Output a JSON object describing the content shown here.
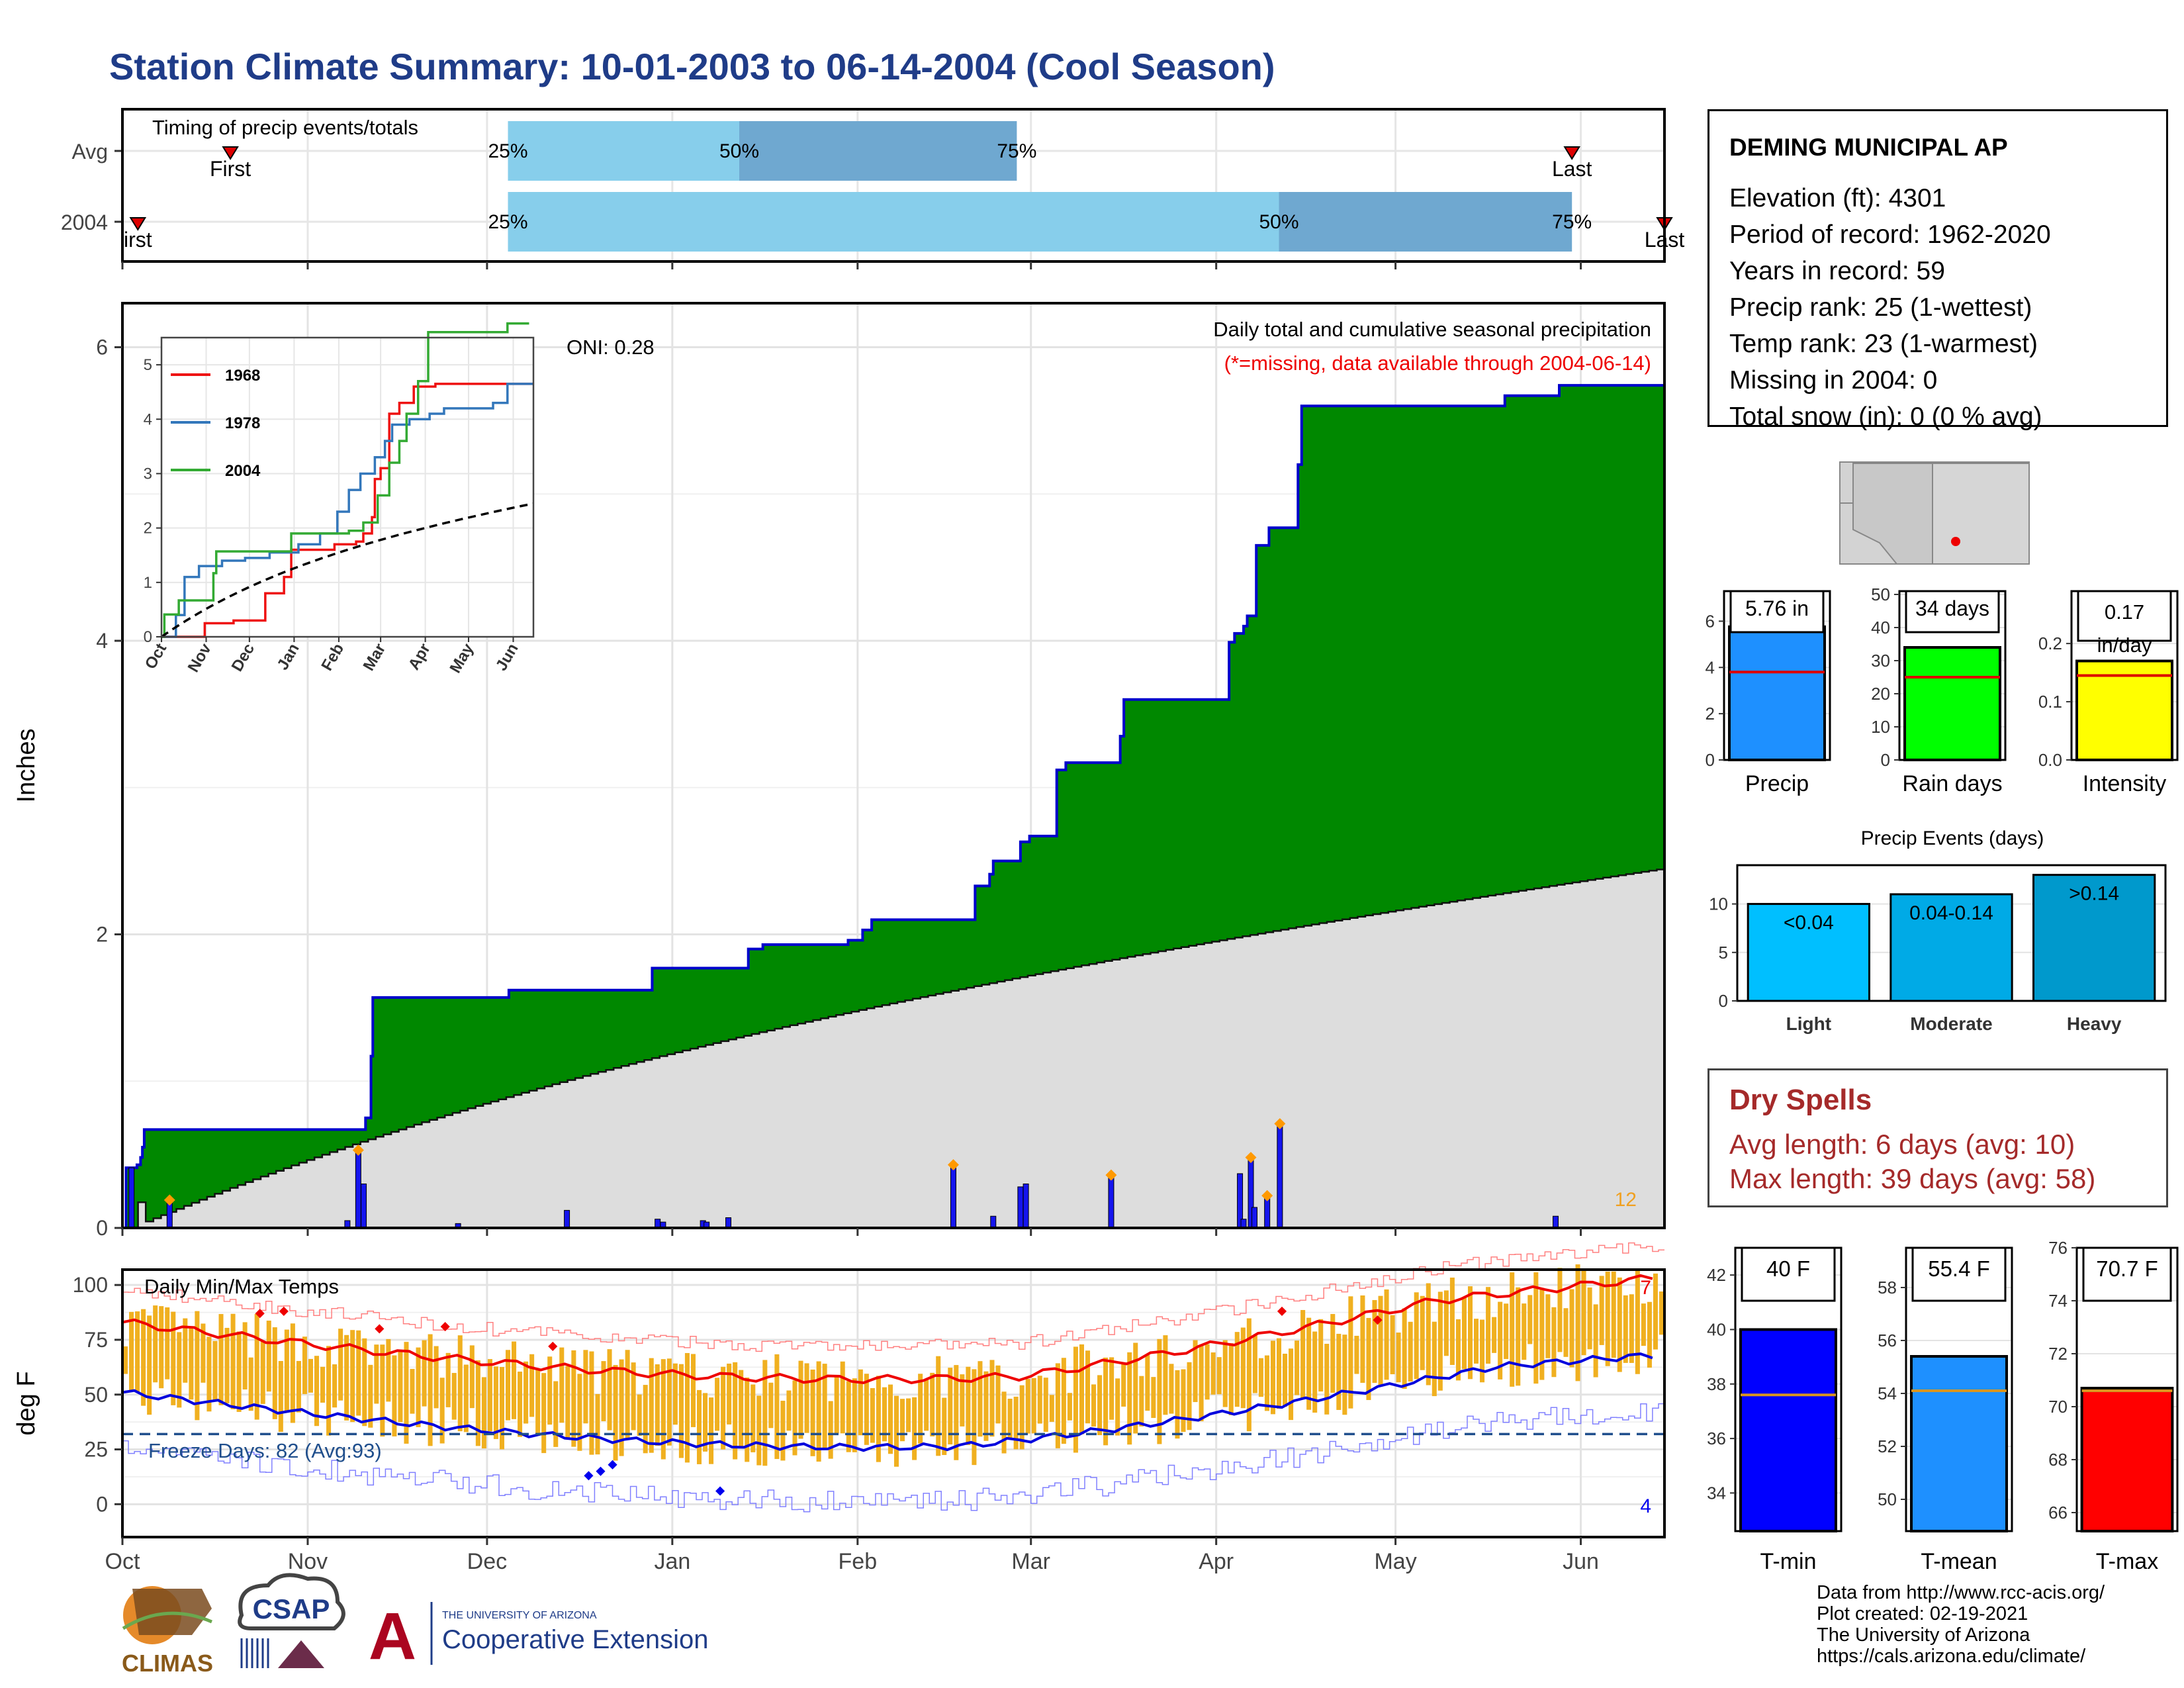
{
  "title": "Station Climate Summary: 10-01-2003 to 06-14-2004 (Cool Season)",
  "station": {
    "name": "DEMING MUNICIPAL AP",
    "lines": [
      "Elevation (ft): 4301",
      "Period of record: 1962-2020",
      "Years in record: 59",
      "Precip rank: 25 (1-wettest)",
      "Temp rank: 23 (1-warmest)",
      "Missing in 2004: 0",
      "Total snow (in): 0 (0 % avg)"
    ]
  },
  "dry_spells": {
    "title": "Dry Spells",
    "avg": "Avg length: 6 days (avg: 10)",
    "max": "Max length: 39 days (avg: 58)"
  },
  "credits": [
    "Data from http://www.rcc-acis.org/",
    "Plot created: 02-19-2021",
    "The University of Arizona",
    "https://cals.arizona.edu/climate/"
  ],
  "logos": {
    "climas": "CLIMAS",
    "csap": "CSAP",
    "ua_small": "THE UNIVERSITY OF ARIZONA",
    "ua_ext": "Cooperative Extension",
    "ua_letter": "A"
  },
  "colors": {
    "navy_title": "#1f3c88",
    "cum_fill": "#008800",
    "cum_line": "#0000cc",
    "avg_fill": "#dddddd",
    "bar_blue": "#1515ee",
    "diamond": "#ff9900",
    "temp_bar": "#f0b020",
    "tmax_avg": "#ee0000",
    "tmin_avg": "#0000dd",
    "light_blue": "#87ceeb",
    "mid_blue": "#6fa8d0"
  },
  "chart_data": [
    {
      "id": "timing",
      "type": "bar",
      "label": "Timing of precip events/totals",
      "rows": [
        {
          "name": "Avg",
          "first": 7,
          "q25": 25,
          "q50": 40,
          "q75": 58,
          "last": 94,
          "first_label": "First",
          "last_label": "Last"
        },
        {
          "name": "2004",
          "first": 1,
          "q25": 25,
          "q50": 75,
          "q75": 94,
          "last": 100,
          "first_label": "irst",
          "last_label": "Last"
        }
      ],
      "pct_labels": [
        "25%",
        "50%",
        "75%"
      ]
    },
    {
      "id": "precip",
      "type": "area",
      "title": "Daily total and cumulative seasonal precipitation",
      "subtitle": "(*=missing, data available through 2004-06-14)",
      "oni": "ONI: 0.28",
      "ylabel": "Inches",
      "ylim": [
        0,
        6.3
      ],
      "yticks": [
        0,
        2,
        4,
        6
      ],
      "xticks": [
        "Oct",
        "Nov",
        "Dec",
        "Jan",
        "Feb",
        "Mar",
        "Apr",
        "May",
        "Jun"
      ],
      "count_label": "12",
      "cumulative_2004": [
        [
          0,
          0
        ],
        [
          2,
          0.41
        ],
        [
          8,
          0.43
        ],
        [
          10,
          0.48
        ],
        [
          11,
          0.55
        ],
        [
          12,
          0.67
        ],
        [
          132,
          0.67
        ],
        [
          134,
          0.75
        ],
        [
          137,
          1.17
        ],
        [
          138,
          1.57
        ],
        [
          210,
          1.57
        ],
        [
          213,
          1.62
        ],
        [
          290,
          1.62
        ],
        [
          292,
          1.77
        ],
        [
          338,
          1.77
        ],
        [
          345,
          1.9
        ],
        [
          353,
          1.93
        ],
        [
          395,
          1.93
        ],
        [
          400,
          1.96
        ],
        [
          408,
          2.03
        ],
        [
          413,
          2.1
        ],
        [
          468,
          2.1
        ],
        [
          470,
          2.33
        ],
        [
          478,
          2.41
        ],
        [
          480,
          2.5
        ],
        [
          495,
          2.63
        ],
        [
          500,
          2.67
        ],
        [
          512,
          2.67
        ],
        [
          515,
          3.12
        ],
        [
          520,
          3.17
        ],
        [
          545,
          3.17
        ],
        [
          550,
          3.35
        ],
        [
          552,
          3.6
        ],
        [
          605,
          3.6
        ],
        [
          610,
          3.99
        ],
        [
          613,
          4.05
        ],
        [
          618,
          4.1
        ],
        [
          620,
          4.17
        ],
        [
          625,
          4.65
        ],
        [
          632,
          4.77
        ],
        [
          645,
          4.77
        ],
        [
          648,
          5.2
        ],
        [
          650,
          5.6
        ],
        [
          730,
          5.6
        ],
        [
          760,
          5.6
        ],
        [
          762,
          5.67
        ],
        [
          790,
          5.67
        ],
        [
          792,
          5.74
        ],
        [
          850,
          5.76
        ]
      ],
      "cumulative_avg_end": 2.45,
      "daily_bars": [
        [
          5,
          0.41
        ],
        [
          26,
          0.19
        ],
        [
          124,
          0.05
        ],
        [
          130,
          0.53
        ],
        [
          133,
          0.3
        ],
        [
          185,
          0.03
        ],
        [
          245,
          0.12
        ],
        [
          295,
          0.06
        ],
        [
          298,
          0.04
        ],
        [
          320,
          0.05
        ],
        [
          322,
          0.04
        ],
        [
          334,
          0.07
        ],
        [
          458,
          0.43
        ],
        [
          480,
          0.08
        ],
        [
          495,
          0.28
        ],
        [
          498,
          0.3
        ],
        [
          545,
          0.36
        ],
        [
          616,
          0.37
        ],
        [
          618,
          0.06
        ],
        [
          622,
          0.48
        ],
        [
          624,
          0.14
        ],
        [
          631,
          0.22
        ],
        [
          638,
          0.71
        ],
        [
          790,
          0.08
        ]
      ]
    },
    {
      "id": "inset",
      "type": "line",
      "series": [
        {
          "name": "1968"
        },
        {
          "name": "1978"
        },
        {
          "name": "2004"
        }
      ],
      "series_colors": [
        "#ee1111",
        "#3377bb",
        "#33aa33"
      ],
      "yticks": [
        0,
        1,
        2,
        3,
        4,
        5
      ],
      "ylim": [
        0,
        5.5
      ],
      "xticks": [
        "Oct",
        "Nov",
        "Dec",
        "Jan",
        "Feb",
        "Mar",
        "Apr",
        "May",
        "Jun"
      ]
    },
    {
      "id": "temps",
      "type": "bar",
      "label": "Daily Min/Max Temps",
      "ylabel": "deg F",
      "ylim": [
        -15,
        107
      ],
      "yticks": [
        0,
        25,
        50,
        75,
        100
      ],
      "freeze_label": "Freeze Days: 82 (Avg:93)",
      "freeze_line": 32,
      "count_max": "7",
      "count_min": "4",
      "xticks": [
        "Oct",
        "Nov",
        "Dec",
        "Jan",
        "Feb",
        "Mar",
        "Apr",
        "May",
        "Jun"
      ]
    },
    {
      "id": "precip_small",
      "type": "bar",
      "panels": [
        {
          "label": "Precip",
          "value_text": "5.76 in",
          "value": 5.76,
          "avg": 3.8,
          "ylim": [
            0,
            7.3
          ],
          "yticks": [
            0,
            2,
            4,
            6
          ],
          "color": "#1e90ff"
        },
        {
          "label": "Rain days",
          "value_text": "34 days",
          "value": 34,
          "avg": 25,
          "ylim": [
            0,
            51
          ],
          "yticks": [
            0,
            10,
            20,
            30,
            40,
            50
          ],
          "color": "#00ff00"
        },
        {
          "label": "Intensity",
          "value_text": "0.17 in/day",
          "value": 0.17,
          "avg": 0.145,
          "ylim": [
            0,
            0.29
          ],
          "yticks": [
            "0.0",
            "0.1",
            "0.2"
          ],
          "color": "#ffff00"
        }
      ]
    },
    {
      "id": "events",
      "type": "bar",
      "title": "Precip Events (days)",
      "categories": [
        "Light",
        "Moderate",
        "Heavy"
      ],
      "bar_labels": [
        "<0.04",
        "0.04-0.14",
        ">0.14"
      ],
      "values": [
        10,
        11,
        13
      ],
      "ylim": [
        0,
        14
      ],
      "yticks": [
        0,
        5,
        10
      ],
      "colors": [
        "#00bfff",
        "#00aae6",
        "#0099cc"
      ]
    },
    {
      "id": "temp_small",
      "type": "bar",
      "panels": [
        {
          "label": "T-min",
          "value_text": "40 F",
          "value": 40,
          "avg": 37.6,
          "ylim": [
            32.6,
            43
          ],
          "yticks": [
            34,
            36,
            38,
            40,
            42
          ],
          "color": "#0000ff"
        },
        {
          "label": "T-mean",
          "value_text": "55.4 F",
          "value": 55.4,
          "avg": 54.1,
          "ylim": [
            48.8,
            59.5
          ],
          "yticks": [
            50,
            52,
            54,
            56,
            58
          ],
          "color": "#1e90ff"
        },
        {
          "label": "T-max",
          "value_text": "70.7 F",
          "value": 70.7,
          "avg": 70.6,
          "ylim": [
            65.3,
            76
          ],
          "yticks": [
            66,
            68,
            70,
            72,
            74,
            76
          ],
          "color": "#ff0000"
        }
      ]
    }
  ]
}
